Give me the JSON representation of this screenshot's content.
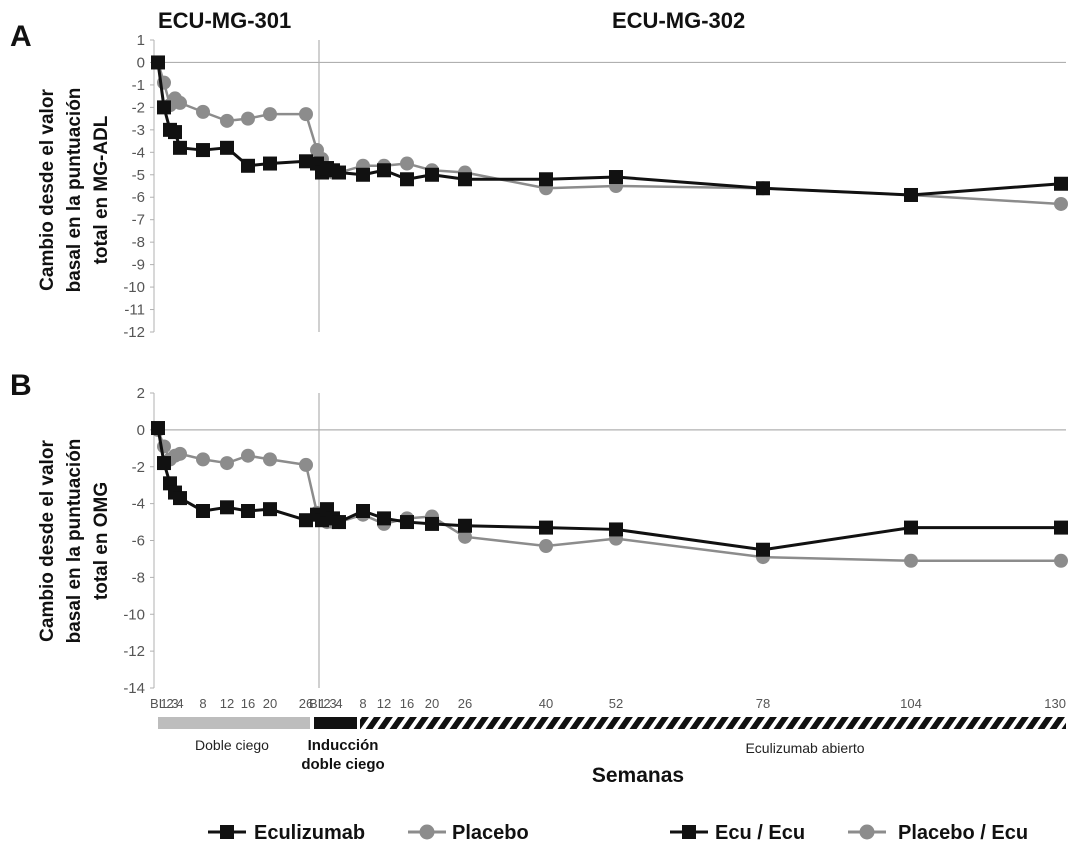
{
  "study_labels": {
    "left": "ECU-MG-301",
    "right": "ECU-MG-302"
  },
  "x_axis": {
    "label": "Semanas",
    "tick_labels": [
      "BL",
      "1",
      "2",
      "3",
      "4",
      "8",
      "12",
      "16",
      "20",
      "26",
      "BL",
      "1",
      "2",
      "3",
      "4",
      "8",
      "12",
      "16",
      "20",
      "26",
      "40",
      "52",
      "78",
      "104",
      "130"
    ]
  },
  "phases": {
    "double_blind": "Doble ciego",
    "induction_line1": "Inducción",
    "induction_line2": "doble ciego",
    "open_label": "Eculizumab abierto"
  },
  "legend": {
    "eculizumab": "Eculizumab",
    "placebo": "Placebo",
    "ecu_ecu": "Ecu / Ecu",
    "placebo_ecu": "Placebo / Ecu"
  },
  "colors": {
    "eculizumab": "#111111",
    "placebo": "#8c8c8c",
    "axis": "#b0b0b0",
    "double_blind_bar": "#bdbdbd"
  },
  "chart_data": [
    {
      "type": "line",
      "panel": "A",
      "ylabel_lines": [
        "Cambio desde el valor",
        "basal en la puntuación",
        "total en MG-ADL"
      ],
      "ylim": [
        -12,
        1
      ],
      "yticks": [
        1,
        0,
        -1,
        -2,
        -3,
        -4,
        -5,
        -6,
        -7,
        -8,
        -9,
        -10,
        -11,
        -12
      ],
      "x_labels": [
        "BL",
        "1",
        "2",
        "3",
        "4",
        "8",
        "12",
        "16",
        "20",
        "26",
        "BL",
        "1",
        "2",
        "3",
        "4",
        "8",
        "12",
        "16",
        "20",
        "26",
        "40",
        "52",
        "78",
        "104",
        "130"
      ],
      "series": [
        {
          "name": "Eculizumab",
          "marker": "square",
          "values": [
            0,
            -2,
            -3,
            -3.1,
            -3.8,
            -3.9,
            -3.8,
            -4.6,
            -4.5,
            -4.4,
            -4.5,
            -4.9,
            -4.7,
            -4.8,
            -4.9,
            -5,
            -4.8,
            -5.2,
            -5,
            -5.2,
            -5.2,
            -5.1,
            -5.6,
            -5.9,
            -5.4
          ]
        },
        {
          "name": "Placebo",
          "marker": "circle",
          "values": [
            0,
            -0.9,
            -1.9,
            -1.6,
            -1.8,
            -2.2,
            -2.6,
            -2.5,
            -2.3,
            -2.3,
            -3.9,
            -4.3,
            -4.7,
            -4.9,
            -4.9,
            -4.6,
            -4.6,
            -4.5,
            -4.8,
            -4.9,
            -5.6,
            -5.5,
            -5.6,
            -5.9,
            -6.3
          ]
        }
      ]
    },
    {
      "type": "line",
      "panel": "B",
      "ylabel_lines": [
        "Cambio desde el valor",
        "basal en la puntuación",
        "total en OMG"
      ],
      "ylim": [
        -14,
        2
      ],
      "yticks": [
        2,
        0,
        -2,
        -4,
        -6,
        -8,
        -10,
        -12,
        -14
      ],
      "x_labels": [
        "BL",
        "1",
        "2",
        "3",
        "4",
        "8",
        "12",
        "16",
        "20",
        "26",
        "BL",
        "1",
        "2",
        "3",
        "4",
        "8",
        "12",
        "16",
        "20",
        "26",
        "40",
        "52",
        "78",
        "104",
        "130"
      ],
      "series": [
        {
          "name": "Eculizumab",
          "marker": "square",
          "values": [
            0.1,
            -1.8,
            -2.9,
            -3.4,
            -3.7,
            -4.4,
            -4.2,
            -4.4,
            -4.3,
            -4.9,
            -4.6,
            -4.9,
            -4.3,
            -4.8,
            -5,
            -4.4,
            -4.8,
            -5,
            -5.1,
            -5.2,
            -5.3,
            -5.4,
            -6.5,
            -5.3,
            -5.3
          ]
        },
        {
          "name": "Placebo",
          "marker": "circle",
          "values": [
            0,
            -0.9,
            -1.6,
            -1.4,
            -1.3,
            -1.6,
            -1.8,
            -1.4,
            -1.6,
            -1.9,
            -4.5,
            -4.7,
            -5,
            -5,
            -5,
            -4.6,
            -5.1,
            -4.8,
            -4.7,
            -5.8,
            -6.3,
            -5.9,
            -6.9,
            -7.1,
            -7.1
          ]
        }
      ]
    }
  ]
}
